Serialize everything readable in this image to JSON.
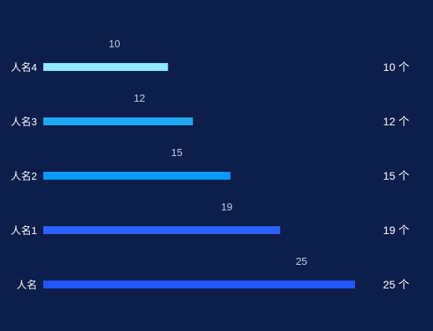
{
  "background": "#0e1e4b",
  "chart_data": {
    "type": "bar",
    "orientation": "horizontal",
    "categories": [
      "人名4",
      "人名3",
      "人名2",
      "人名1",
      "人名"
    ],
    "values": [
      10,
      12,
      15,
      19,
      25
    ],
    "colors": [
      "#8fe9ff",
      "#1ea8f2",
      "#0a9bff",
      "#2a63ff",
      "#2255ff"
    ],
    "unit": "个",
    "right_labels": [
      "10 个",
      "12 个",
      "15 个",
      "19 个",
      "25 个"
    ],
    "xlim": [
      0,
      25
    ],
    "grid": false,
    "title": "",
    "xlabel": "",
    "ylabel": ""
  }
}
